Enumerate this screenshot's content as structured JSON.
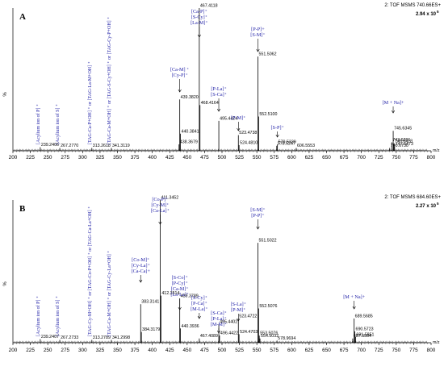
{
  "chart_data": [
    {
      "type": "bar",
      "panel": "A",
      "header_title": "2: TOF MSMS 740.66ES+",
      "intensity_scale": "2.94 x 10",
      "intensity_exp": "5",
      "xlabel": "m/z",
      "ylabel": "%",
      "xlim": [
        200,
        800
      ],
      "ylim": [
        0,
        100
      ],
      "x_ticks": [
        200,
        225,
        250,
        275,
        300,
        325,
        350,
        375,
        400,
        425,
        450,
        475,
        500,
        525,
        550,
        575,
        600,
        625,
        650,
        675,
        700,
        725,
        750,
        775,
        800
      ],
      "peaks": [
        {
          "mz": 239.2406,
          "intensity": 2.5,
          "label": "239.2406"
        },
        {
          "mz": 267.277,
          "intensity": 2.0,
          "label": "267.2770"
        },
        {
          "mz": 313.2618,
          "intensity": 2.0,
          "label": "313.2618"
        },
        {
          "mz": 341.3119,
          "intensity": 2.0,
          "label": "341.3119"
        },
        {
          "mz": 438.3679,
          "intensity": 4.5,
          "label": "438.3679"
        },
        {
          "mz": 439.382,
          "intensity": 36,
          "label": "439.3820"
        },
        {
          "mz": 440.3841,
          "intensity": 12,
          "label": "440.3841"
        },
        {
          "mz": 467.4118,
          "intensity": 100,
          "label": "467.4118"
        },
        {
          "mz": 468.4164,
          "intensity": 32,
          "label": "468.4164"
        },
        {
          "mz": 495.4424,
          "intensity": 21,
          "label": "495.4424"
        },
        {
          "mz": 523.4738,
          "intensity": 11,
          "label": "523.4738"
        },
        {
          "mz": 524.481,
          "intensity": 4.0,
          "label": "524.4810"
        },
        {
          "mz": 551.5062,
          "intensity": 66,
          "label": "551.5062"
        },
        {
          "mz": 552.51,
          "intensity": 24,
          "label": "552.5100"
        },
        {
          "mz": 578.5247,
          "intensity": 3.5,
          "label": "578.5247"
        },
        {
          "mz": 579.5339,
          "intensity": 4.5,
          "label": "579.5339"
        },
        {
          "mz": 606.5553,
          "intensity": 2.0,
          "label": "606.5553"
        },
        {
          "mz": 740.673,
          "intensity": 2.0,
          "label": "740.6730"
        },
        {
          "mz": 743.6201,
          "intensity": 6.0,
          "label": "743.6201"
        },
        {
          "mz": 745.6345,
          "intensity": 14,
          "label": "745.6345"
        },
        {
          "mz": 746.6418,
          "intensity": 5.0,
          "label": "746.6418"
        },
        {
          "mz": 747.6473,
          "intensity": 3.0,
          "label": "747.6473"
        }
      ],
      "annotations": [
        {
          "lines": [
            "[Ca-P]⁺",
            "[S-Cy]⁺",
            "[La-M]⁺"
          ],
          "mz": 467.4
        },
        {
          "lines": [
            "[P-P]+",
            "[S-M]⁺"
          ],
          "mz": 551.5
        },
        {
          "lines": [
            "[Ca-M] ⁺",
            "[Cy-P]⁺"
          ],
          "mz": 439.4
        },
        {
          "lines": [
            "[P-La]⁺",
            "[S-Ca]⁺"
          ],
          "mz": 495.4
        },
        {
          "lines": [
            "[P-M]⁺"
          ],
          "mz": 523.5
        },
        {
          "lines": [
            "[S-P]⁺"
          ],
          "mz": 579.5
        },
        {
          "lines": [
            "[M + Na]+"
          ],
          "mz": 745.6
        }
      ],
      "vertical_labels": [
        {
          "text": "[Acylium ion of P] ⁺",
          "mz": 239.2
        },
        {
          "text": "[Acylium ion of S] ⁺",
          "mz": 267.3
        },
        {
          "text": "[TAG-Ca-P+OH] ⁺ or [TAG-La-M+OH] ⁺",
          "mz": 313.3
        },
        {
          "text": "[TAG-Ca-M+OH] ⁺ or [TAG-S-Cy+OH] ⁺ or [TAG-Cy-P+OH] ⁺",
          "mz": 341.3
        }
      ]
    },
    {
      "type": "bar",
      "panel": "B",
      "header_title": "2: TOF MSMS 684.60ES+",
      "intensity_scale": "2.27 x 10",
      "intensity_exp": "5",
      "xlabel": "m/z",
      "ylabel": "%",
      "xlim": [
        200,
        800
      ],
      "ylim": [
        0,
        100
      ],
      "x_ticks": [
        200,
        225,
        250,
        275,
        300,
        325,
        350,
        375,
        400,
        425,
        450,
        475,
        500,
        525,
        550,
        575,
        600,
        625,
        650,
        675,
        700,
        725,
        750,
        775,
        800
      ],
      "peaks": [
        {
          "mz": 239.2407,
          "intensity": 2.5,
          "label": "239.2407"
        },
        {
          "mz": 267.2733,
          "intensity": 2.0,
          "label": "267.2733"
        },
        {
          "mz": 313.2789,
          "intensity": 2.0,
          "label": "313.2789"
        },
        {
          "mz": 341.2998,
          "intensity": 2.0,
          "label": "341.2998"
        },
        {
          "mz": 383.3141,
          "intensity": 27,
          "label": "383.3141"
        },
        {
          "mz": 384.3179,
          "intensity": 7.5,
          "label": "384.3179"
        },
        {
          "mz": 411.3452,
          "intensity": 100,
          "label": "411.3452"
        },
        {
          "mz": 412.3514,
          "intensity": 33,
          "label": "412.3514"
        },
        {
          "mz": 439.3789,
          "intensity": 31,
          "label": "439.3789"
        },
        {
          "mz": 440.3936,
          "intensity": 10,
          "label": "440.3936"
        },
        {
          "mz": 467.4089,
          "intensity": 3.0,
          "label": "467.4089"
        },
        {
          "mz": 495.4402,
          "intensity": 13,
          "label": "495.4402"
        },
        {
          "mz": 496.4422,
          "intensity": 5.0,
          "label": "496.4422"
        },
        {
          "mz": 523.4722,
          "intensity": 17,
          "label": "523.4722"
        },
        {
          "mz": 524.4703,
          "intensity": 6.0,
          "label": "524.4703"
        },
        {
          "mz": 551.5022,
          "intensity": 70,
          "label": "551.5022"
        },
        {
          "mz": 552.5076,
          "intensity": 24,
          "label": "552.5076"
        },
        {
          "mz": 553.5076,
          "intensity": 5.0,
          "label": "553.5076"
        },
        {
          "mz": 554.5032,
          "intensity": 3.0,
          "label": "554.5032"
        },
        {
          "mz": 578.9694,
          "intensity": 1.5,
          "label": "578.9694"
        },
        {
          "mz": 687.5504,
          "intensity": 3.0,
          "label": "687.5504"
        },
        {
          "mz": 689.5685,
          "intensity": 17,
          "label": "689.5685"
        },
        {
          "mz": 690.5723,
          "intensity": 8.0,
          "label": "690.5723"
        },
        {
          "mz": 691.5851,
          "intensity": 4.0,
          "label": "691.5851"
        }
      ],
      "annotations": [
        {
          "lines": [
            "[Co-P]⁺",
            "[Cy-M]⁺",
            "[Ca-La]⁺"
          ],
          "mz": 411.3
        },
        {
          "lines": [
            "[S-M]⁺",
            "[P-P]⁺"
          ],
          "mz": 551.5
        },
        {
          "lines": [
            "[Co-M]⁺",
            "[Cy-La]⁺",
            "[Ca-Ca]+"
          ],
          "mz": 383.3
        },
        {
          "lines": [
            "[S-Co]⁺",
            "[P-Cy]⁺",
            "[Ca-M]⁺",
            "[La-La]⁺"
          ],
          "mz": 439.4
        },
        {
          "lines": [
            "[S-Cy]⁺",
            "[P-Ca]⁺",
            "[M-La]⁺"
          ],
          "mz": 467.4
        },
        {
          "lines": [
            "[S-Ca]⁺",
            "[P-La]⁺",
            "[M-M]⁺"
          ],
          "mz": 495.4
        },
        {
          "lines": [
            "[S-La]⁺",
            "[P-M]⁺"
          ],
          "mz": 523.5
        },
        {
          "lines": [
            "[M + Na]+"
          ],
          "mz": 689.6
        }
      ],
      "vertical_labels": [
        {
          "text": "[Acylium ion of P] ⁺",
          "mz": 239.2
        },
        {
          "text": "[Acylium ion of S] ⁺",
          "mz": 267.3
        },
        {
          "text": "[TAG-Cy-M+OH] ⁺ or [TAG-Co-P+OH] ⁺ or [TAG-Ca-La+OH] ⁺",
          "mz": 313.3
        },
        {
          "text": "[TAG-Ca-M+OH] ⁺ or [TAG-Cy-La+OH] ⁺",
          "mz": 341.3
        }
      ]
    }
  ]
}
